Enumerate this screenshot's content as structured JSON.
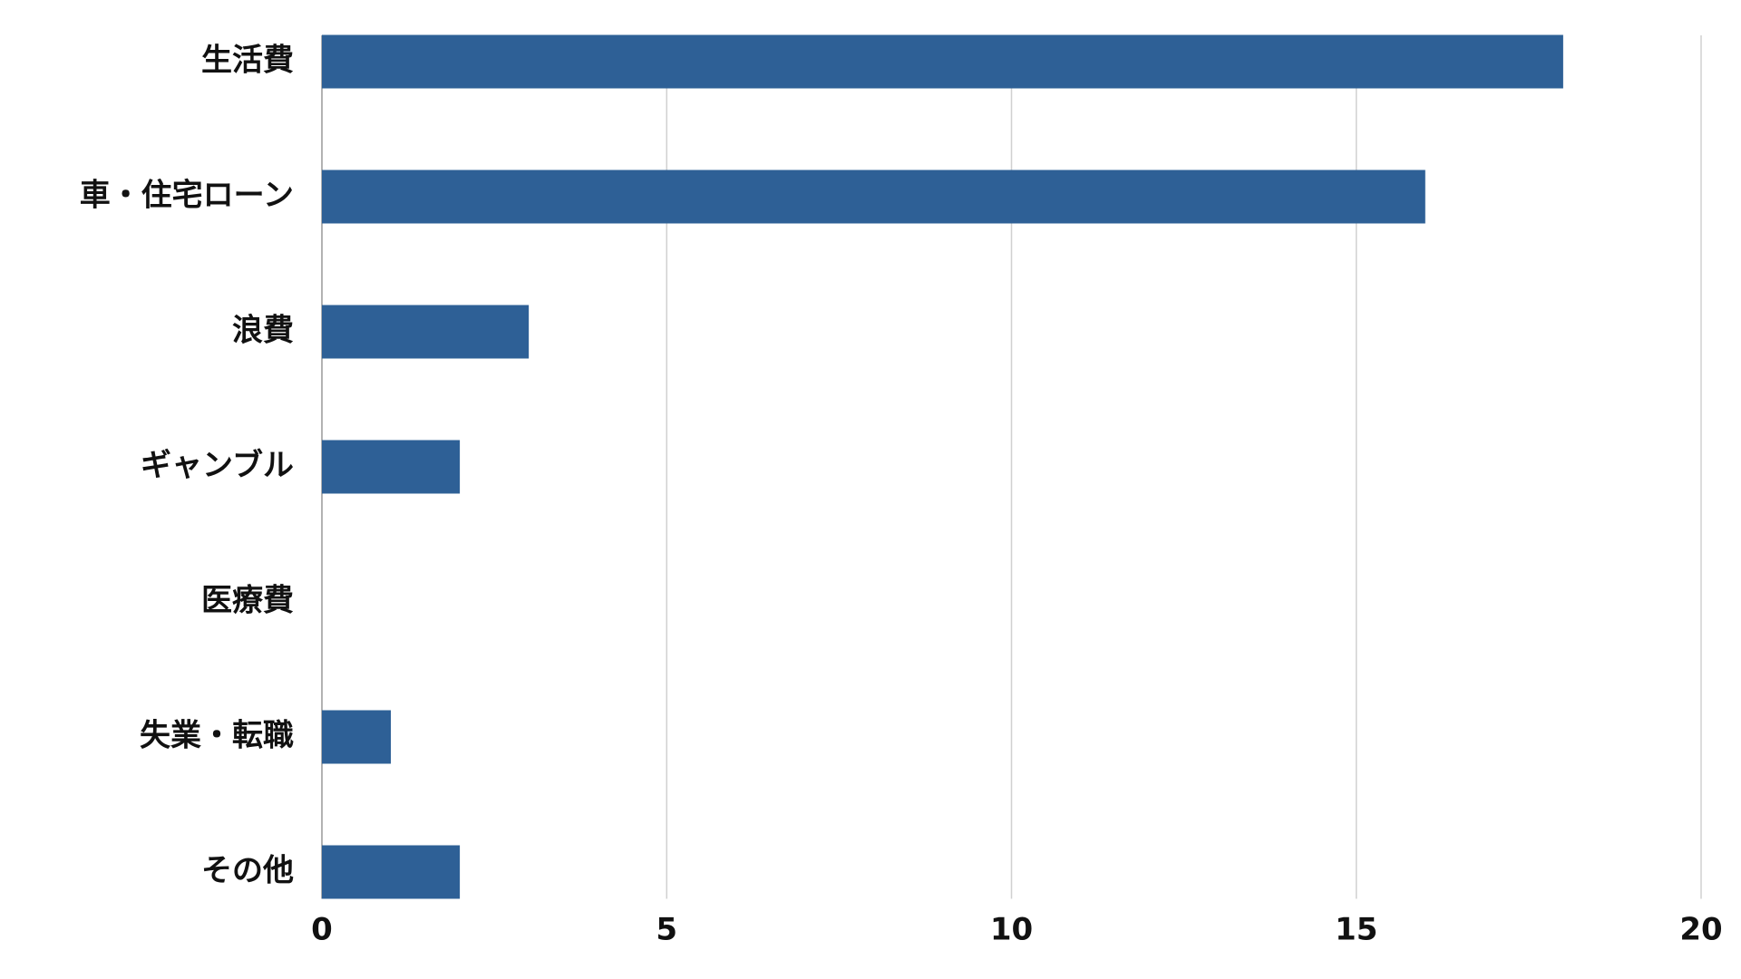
{
  "chart_data": {
    "type": "hbar",
    "categories": [
      "生活費",
      "車・住宅ローン",
      "浪費",
      "ギャンブル",
      "医療費",
      "失業・転職",
      "その他"
    ],
    "values": [
      18,
      16,
      3,
      2,
      0,
      1,
      2
    ],
    "color": "#2e6096",
    "xlim": [
      0,
      20
    ],
    "xticks": [
      0,
      5,
      10,
      15,
      20
    ],
    "grid": true
  }
}
